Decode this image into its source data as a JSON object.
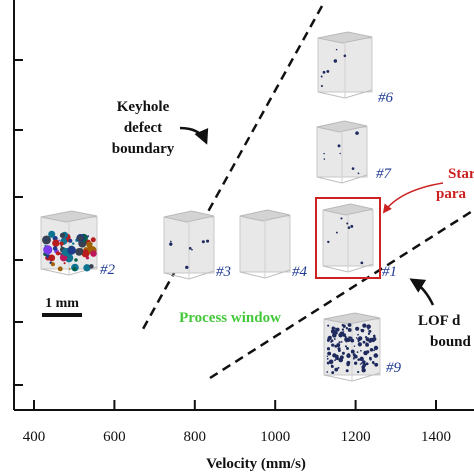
{
  "chart_data": {
    "type": "scatter",
    "xlabel": "Velocity (mm/s)",
    "ylabel": "",
    "xlim": [
      360,
      1470
    ],
    "x_ticks": [
      400,
      600,
      800,
      1000,
      1200,
      1400
    ],
    "y_tick_count": 6,
    "grid": false,
    "scale_bar_label": "1 mm",
    "samples": [
      {
        "label": "#2",
        "velocity": 400,
        "defect": "keyhole",
        "pore_color": "mixed"
      },
      {
        "label": "#3",
        "velocity": 800,
        "defect": "sparse"
      },
      {
        "label": "#4",
        "velocity": 1000,
        "defect": "none"
      },
      {
        "label": "#1",
        "velocity": 1200,
        "defect": "sparse",
        "highlighted": true
      },
      {
        "label": "#7",
        "velocity": 1200,
        "defect": "sparse"
      },
      {
        "label": "#6",
        "velocity": 1200,
        "defect": "sparse"
      },
      {
        "label": "#9",
        "velocity": 1200,
        "defect": "lack-of-fusion"
      }
    ],
    "annotations": {
      "keyhole": [
        "Keyhole",
        "defect",
        "boundary"
      ],
      "process_window": "Process window",
      "standard": [
        "Star",
        "para"
      ],
      "lof": [
        "LOF d",
        "bound"
      ]
    },
    "colors": {
      "axis": "#111111",
      "sample_label": "#1f3a93",
      "process_window": "#44c93a",
      "highlight": "#cc2222",
      "boundary": "#111111"
    }
  }
}
